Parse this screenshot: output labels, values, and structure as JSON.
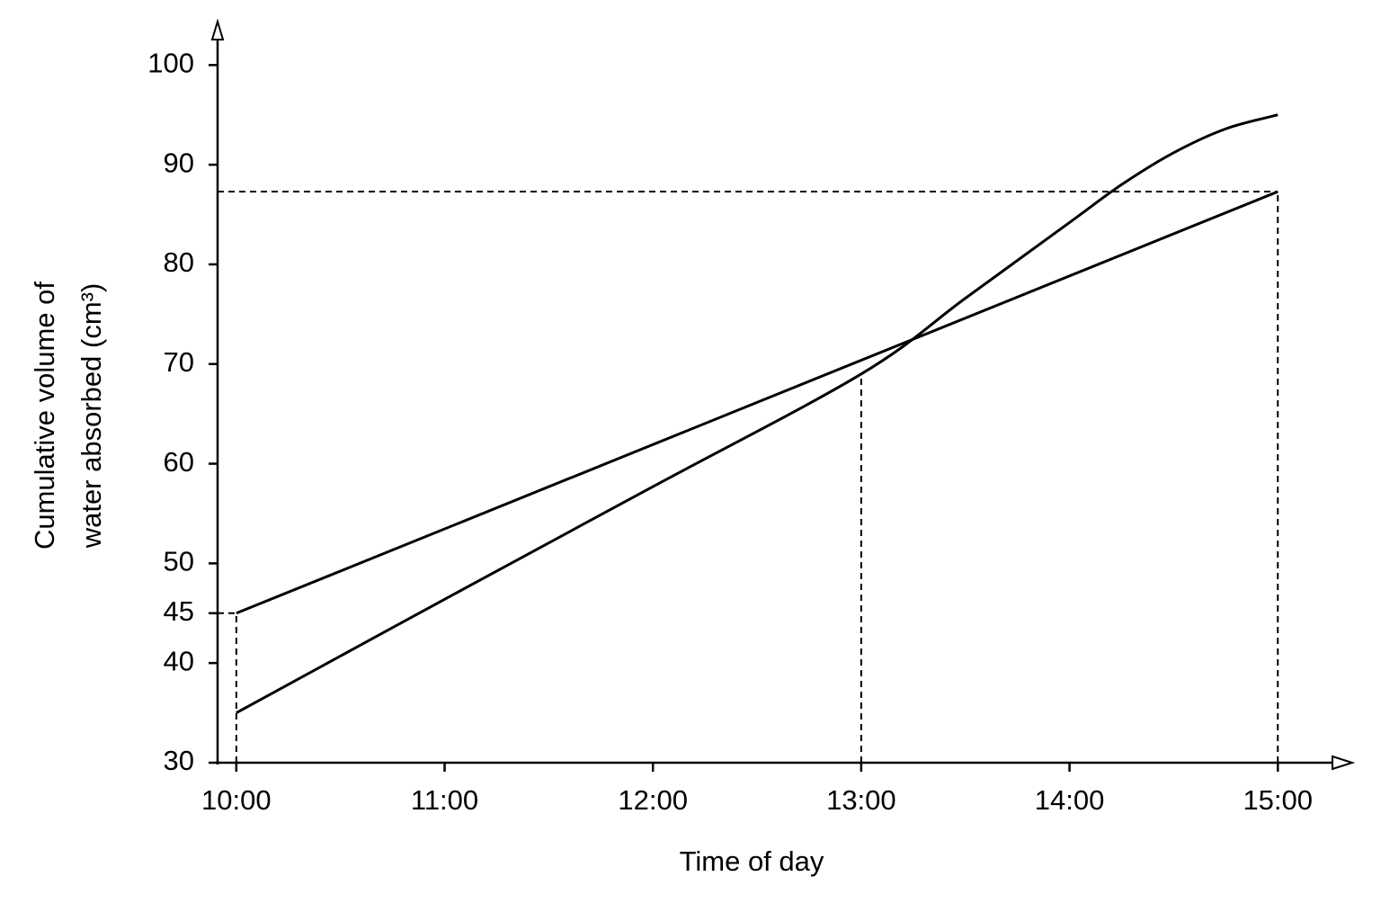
{
  "chart_data": {
    "type": "line",
    "xlabel": "Time of day",
    "ylabel": [
      "Cumulative volume of",
      "water absorbed (cm³)"
    ],
    "series": [
      {
        "color": "#000000",
        "x": [
          10,
          11,
          12,
          13,
          13.5,
          14,
          14.25,
          14.5,
          14.75,
          15
        ],
        "values": [
          35,
          46.4,
          57.7,
          69,
          76.6,
          84.2,
          88,
          91.2,
          93.6,
          95
        ]
      },
      {
        "color": "#000000",
        "x": [
          10,
          15
        ],
        "values": [
          45,
          87.3
        ]
      }
    ],
    "guides": [
      {
        "x": 10,
        "y": 45,
        "horizontal": true
      },
      {
        "x": 13,
        "y": 69,
        "horizontal": false
      },
      {
        "x": 15,
        "y": 87.3,
        "horizontal": true
      }
    ],
    "xlim": [
      9.91,
      15.34
    ],
    "xticks": [
      {
        "value": 10,
        "label": "10:00"
      },
      {
        "value": 11,
        "label": "11:00"
      },
      {
        "value": 12,
        "label": "12:00"
      },
      {
        "value": 13,
        "label": "13:00"
      },
      {
        "value": 14,
        "label": "14:00"
      },
      {
        "value": 15,
        "label": "15:00"
      }
    ],
    "ylim": [
      30,
      104
    ],
    "yticks": [
      30,
      40,
      45,
      50,
      60,
      70,
      80,
      90,
      100
    ],
    "grid": false
  }
}
